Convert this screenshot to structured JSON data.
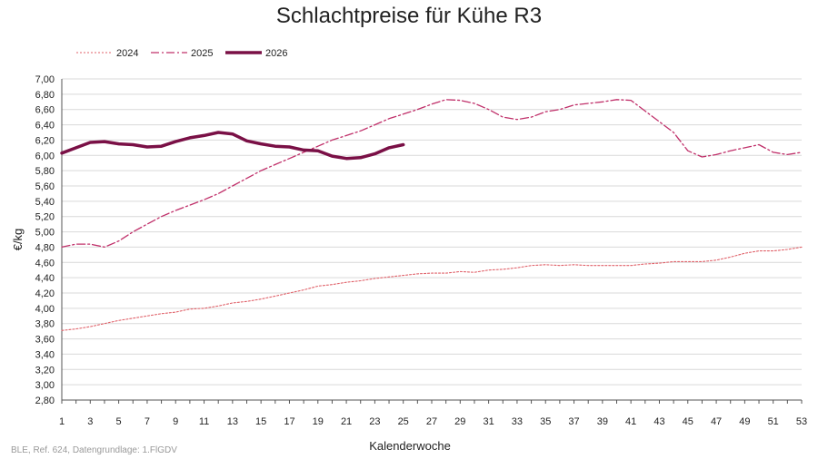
{
  "chart_data": {
    "type": "line",
    "title": "Schlachtpreise für Kühe R3",
    "xlabel": "Kalenderwoche",
    "ylabel": "€/kg",
    "xlim": [
      1,
      53
    ],
    "ylim": [
      2.8,
      7.0
    ],
    "x_ticks": [
      1,
      3,
      5,
      7,
      9,
      11,
      13,
      15,
      17,
      19,
      21,
      23,
      25,
      27,
      29,
      31,
      33,
      35,
      37,
      39,
      41,
      43,
      45,
      47,
      49,
      51,
      53
    ],
    "y_ticks": [
      "2,80",
      "3,00",
      "3,20",
      "3,40",
      "3,60",
      "3,80",
      "4,00",
      "4,20",
      "4,40",
      "4,60",
      "4,80",
      "5,00",
      "5,20",
      "5,40",
      "5,60",
      "5,80",
      "6,00",
      "6,20",
      "6,40",
      "6,60",
      "6,80",
      "7,00"
    ],
    "grid": "horizontal",
    "legend_position": "top-left",
    "series": [
      {
        "name": "2024",
        "color": "#e0626a",
        "style": "dotted",
        "x": [
          1,
          2,
          3,
          4,
          5,
          6,
          7,
          8,
          9,
          10,
          11,
          12,
          13,
          14,
          15,
          16,
          17,
          18,
          19,
          20,
          21,
          22,
          23,
          24,
          25,
          26,
          27,
          28,
          29,
          30,
          31,
          32,
          33,
          34,
          35,
          36,
          37,
          38,
          39,
          40,
          41,
          42,
          43,
          44,
          45,
          46,
          47,
          48,
          49,
          50,
          51,
          52,
          53
        ],
        "values": [
          3.71,
          3.73,
          3.76,
          3.8,
          3.84,
          3.87,
          3.9,
          3.93,
          3.95,
          3.99,
          4.0,
          4.03,
          4.07,
          4.09,
          4.12,
          4.16,
          4.2,
          4.24,
          4.29,
          4.31,
          4.34,
          4.36,
          4.39,
          4.41,
          4.43,
          4.45,
          4.46,
          4.46,
          4.48,
          4.47,
          4.5,
          4.51,
          4.53,
          4.56,
          4.57,
          4.56,
          4.57,
          4.56,
          4.56,
          4.56,
          4.56,
          4.58,
          4.59,
          4.61,
          4.61,
          4.61,
          4.63,
          4.67,
          4.72,
          4.75,
          4.75,
          4.77,
          4.8
        ]
      },
      {
        "name": "2025",
        "color": "#c0306a",
        "style": "dashdot",
        "x": [
          1,
          2,
          3,
          4,
          5,
          6,
          7,
          8,
          9,
          10,
          11,
          12,
          13,
          14,
          15,
          16,
          17,
          18,
          19,
          20,
          21,
          22,
          23,
          24,
          25,
          26,
          27,
          28,
          29,
          30,
          31,
          32,
          33,
          34,
          35,
          36,
          37,
          38,
          39,
          40,
          41,
          42,
          43,
          44,
          45,
          46,
          47,
          48,
          49,
          50,
          51,
          52,
          53
        ],
        "values": [
          4.8,
          4.84,
          4.84,
          4.8,
          4.88,
          5.0,
          5.1,
          5.2,
          5.28,
          5.35,
          5.42,
          5.5,
          5.6,
          5.7,
          5.8,
          5.88,
          5.96,
          6.04,
          6.12,
          6.2,
          6.26,
          6.32,
          6.4,
          6.48,
          6.54,
          6.6,
          6.67,
          6.73,
          6.72,
          6.68,
          6.6,
          6.5,
          6.47,
          6.5,
          6.57,
          6.6,
          6.66,
          6.68,
          6.7,
          6.73,
          6.72,
          6.58,
          6.44,
          6.3,
          6.06,
          5.98,
          6.01,
          6.06,
          6.1,
          6.14,
          6.04,
          6.01,
          6.04
        ]
      },
      {
        "name": "2026",
        "color": "#7a1046",
        "style": "solid",
        "x": [
          1,
          2,
          3,
          4,
          5,
          6,
          7,
          8,
          9,
          10,
          11,
          12,
          13,
          14,
          15,
          16,
          17,
          18,
          19,
          20,
          21,
          22,
          23,
          24,
          25
        ],
        "values": [
          6.03,
          6.1,
          6.17,
          6.18,
          6.15,
          6.14,
          6.11,
          6.12,
          6.18,
          6.23,
          6.26,
          6.3,
          6.28,
          6.19,
          6.15,
          6.12,
          6.11,
          6.07,
          6.06,
          5.99,
          5.96,
          5.97,
          6.02,
          6.1,
          6.14
        ]
      }
    ],
    "source": "BLE, Ref. 624, Datengrundlage: 1.FlGDV"
  }
}
